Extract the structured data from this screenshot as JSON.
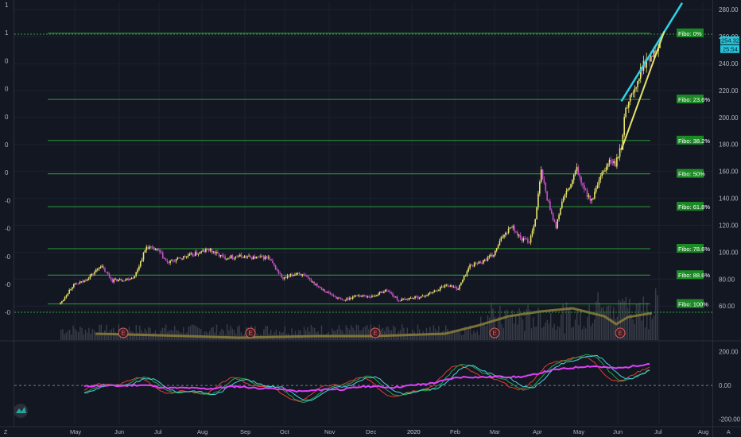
{
  "chart_data": [
    {
      "type": "candlestick",
      "panel": "price",
      "title": "",
      "y_axis": {
        "ticks": [
          60,
          80,
          100,
          120,
          140,
          160,
          180,
          200,
          220,
          240,
          260,
          280
        ],
        "tick_labels": [
          "60.00",
          "80.00",
          "100.00",
          "120.00",
          "140.00",
          "160.00",
          "180.00",
          "200.00",
          "220.00",
          "240.00",
          "260.00",
          "280.00"
        ],
        "range": [
          56,
          286
        ]
      },
      "x_axis": {
        "tick_labels": [
          "May",
          "Jun",
          "Jul",
          "Aug",
          "Sep",
          "Oct",
          "Nov",
          "Dec",
          "2020",
          "Feb",
          "Mar",
          "Apr",
          "May",
          "Jun",
          "Jul",
          "Aug"
        ]
      },
      "left_axis_labels": [
        "1",
        "1",
        "0",
        "0",
        "0",
        "0",
        "0",
        "-0",
        "-0",
        "-0",
        "-0",
        "-0"
      ],
      "last_price_label": "254.32",
      "countdown_label": "25:54",
      "fibonacci_levels": [
        {
          "label": "Fibo:   0%",
          "price": 262.5
        },
        {
          "label": "Fibo: 23.6%",
          "price": 213.4
        },
        {
          "label": "Fibo: 38.2%",
          "price": 182.9
        },
        {
          "label": "Fibo:   50%",
          "price": 158.2
        },
        {
          "label": "Fibo: 61.8%",
          "price": 133.8
        },
        {
          "label": "Fibo: 78.6%",
          "price": 102.6
        },
        {
          "label": "Fibo: 88.6%",
          "price": 83.0
        },
        {
          "label": "Fibo: 100%",
          "price": 61.6
        }
      ],
      "price_path": [
        {
          "t": 0,
          "p": 62
        },
        {
          "t": 8,
          "p": 75
        },
        {
          "t": 15,
          "p": 78
        },
        {
          "t": 22,
          "p": 84
        },
        {
          "t": 27,
          "p": 90
        },
        {
          "t": 35,
          "p": 79
        },
        {
          "t": 45,
          "p": 80
        },
        {
          "t": 50,
          "p": 82
        },
        {
          "t": 58,
          "p": 104
        },
        {
          "t": 66,
          "p": 101
        },
        {
          "t": 72,
          "p": 92
        },
        {
          "t": 82,
          "p": 96
        },
        {
          "t": 92,
          "p": 99
        },
        {
          "t": 100,
          "p": 102
        },
        {
          "t": 110,
          "p": 96
        },
        {
          "t": 120,
          "p": 97
        },
        {
          "t": 130,
          "p": 96
        },
        {
          "t": 140,
          "p": 96
        },
        {
          "t": 150,
          "p": 80
        },
        {
          "t": 160,
          "p": 85
        },
        {
          "t": 170,
          "p": 78
        },
        {
          "t": 180,
          "p": 70
        },
        {
          "t": 190,
          "p": 64
        },
        {
          "t": 200,
          "p": 68
        },
        {
          "t": 210,
          "p": 67
        },
        {
          "t": 220,
          "p": 72
        },
        {
          "t": 228,
          "p": 64
        },
        {
          "t": 236,
          "p": 66
        },
        {
          "t": 244,
          "p": 67
        },
        {
          "t": 252,
          "p": 71
        },
        {
          "t": 260,
          "p": 76
        },
        {
          "t": 268,
          "p": 73
        },
        {
          "t": 276,
          "p": 90
        },
        {
          "t": 284,
          "p": 93
        },
        {
          "t": 292,
          "p": 98
        },
        {
          "t": 298,
          "p": 112
        },
        {
          "t": 304,
          "p": 120
        },
        {
          "t": 310,
          "p": 110
        },
        {
          "t": 316,
          "p": 108
        },
        {
          "t": 320,
          "p": 125
        },
        {
          "t": 324,
          "p": 160
        },
        {
          "t": 328,
          "p": 140
        },
        {
          "t": 334,
          "p": 118
        },
        {
          "t": 338,
          "p": 138
        },
        {
          "t": 344,
          "p": 150
        },
        {
          "t": 348,
          "p": 162
        },
        {
          "t": 352,
          "p": 148
        },
        {
          "t": 358,
          "p": 138
        },
        {
          "t": 364,
          "p": 155
        },
        {
          "t": 370,
          "p": 168
        },
        {
          "t": 374,
          "p": 165
        },
        {
          "t": 378,
          "p": 178
        },
        {
          "t": 381,
          "p": 208
        },
        {
          "t": 384,
          "p": 215
        },
        {
          "t": 388,
          "p": 222
        },
        {
          "t": 392,
          "p": 238
        },
        {
          "t": 396,
          "p": 242
        },
        {
          "t": 400,
          "p": 250
        },
        {
          "t": 404,
          "p": 254.32
        }
      ],
      "volume_ma_note": "",
      "trendlines": [
        {
          "name": "upper-wedge-line",
          "color": "#2ed3e6",
          "from": {
            "t": 378,
            "p": 212
          },
          "to": {
            "t": 419,
            "p": 285
          }
        },
        {
          "name": "lower-wedge-line",
          "color": "#e8e36a",
          "from": {
            "t": 378,
            "p": 176
          },
          "to": {
            "t": 407,
            "p": 264
          }
        }
      ],
      "earnings_markers": [
        "E",
        "E",
        "E",
        "E",
        "E"
      ]
    },
    {
      "type": "line",
      "panel": "oscillator",
      "y_axis": {
        "tick_labels": [
          "200.00",
          "0.00",
          "-200.00"
        ],
        "ticks": [
          200,
          0,
          -200
        ],
        "range": [
          -230,
          250
        ]
      },
      "series": [
        {
          "color": "#26a641"
        },
        {
          "color": "#e53935"
        },
        {
          "color": "#4dd0e1"
        },
        {
          "color": "#e040fb"
        }
      ]
    }
  ],
  "colors": {
    "background": "#131722",
    "grid": "#1e2230",
    "fib_line": "#2e9d3a",
    "fib_label_bg": "#1b8a25",
    "up_candle": "#e8e36a",
    "down_candle": "#c850c8",
    "volume": "#4a4e5a",
    "volume_ma": "#8c7f3a",
    "price_label_bg": "#26c6da",
    "accent": "#26a69a"
  },
  "icons": {
    "logo": "tradingview-logo-icon"
  }
}
